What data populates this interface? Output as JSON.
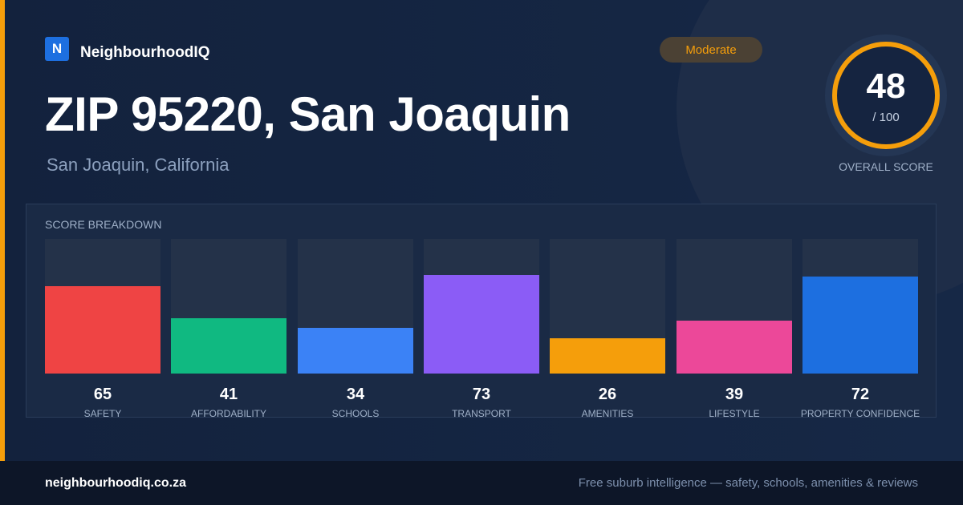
{
  "brand": {
    "logo_letter": "N",
    "name": "NeighbourhoodIQ"
  },
  "badge": {
    "label": "Moderate",
    "color": "#f59e0b"
  },
  "header": {
    "title": "ZIP 95220, San Joaquin",
    "subtitle": "San Joaquin, California"
  },
  "overall": {
    "score": "48",
    "max": "/ 100",
    "label": "OVERALL SCORE",
    "color": "#f59e0b"
  },
  "breakdown": {
    "title": "SCORE BREAKDOWN",
    "max_score": 100,
    "categories": [
      {
        "label": "SAFETY",
        "value": 65,
        "color": "#ef4444"
      },
      {
        "label": "AFFORDABILITY",
        "value": 41,
        "color": "#10b981"
      },
      {
        "label": "SCHOOLS",
        "value": 34,
        "color": "#3b82f6"
      },
      {
        "label": "TRANSPORT",
        "value": 73,
        "color": "#8b5cf6"
      },
      {
        "label": "AMENITIES",
        "value": 26,
        "color": "#f59e0b"
      },
      {
        "label": "LIFESTYLE",
        "value": 39,
        "color": "#ec4899"
      },
      {
        "label": "PROPERTY CONFIDENCE",
        "value": 72,
        "color": "#1d6fe0"
      }
    ]
  },
  "footer": {
    "domain": "neighbourhoodiq.co.za",
    "tagline": "Free suburb intelligence — safety, schools, amenities & reviews"
  }
}
